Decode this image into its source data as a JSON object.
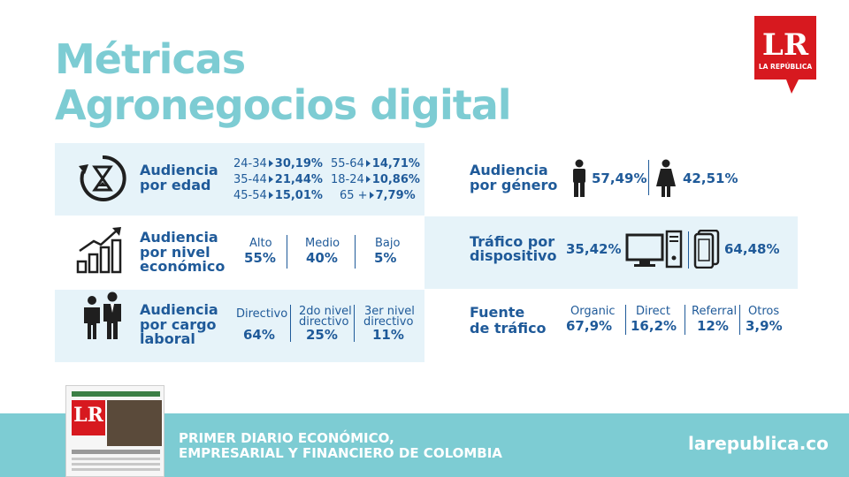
{
  "title": {
    "line1": "Métricas",
    "line2": "Agronegocios digital"
  },
  "logo": {
    "letters": "LR",
    "tagline": "LA REPÚBLICA"
  },
  "colors": {
    "teal": "#7dccd3",
    "navy": "#1f5a99",
    "band": "#e6f3f9",
    "logo_red": "#d7191f"
  },
  "age": {
    "label1": "Audiencia",
    "label2": "por edad",
    "rows": [
      {
        "a_range": "24-34",
        "a_val": "30,19%",
        "b_range": "55-64",
        "b_val": "14,71%"
      },
      {
        "a_range": "35-44",
        "a_val": "21,44%",
        "b_range": "18-24",
        "b_val": "10,86%"
      },
      {
        "a_range": "45-54",
        "a_val": "15,01%",
        "b_range": "65 +",
        "b_val": "7,79%"
      }
    ]
  },
  "economic": {
    "label1": "Audiencia",
    "label2": "por nivel",
    "label3": "económico",
    "items": [
      {
        "name": "Alto",
        "value": "55%"
      },
      {
        "name": "Medio",
        "value": "40%"
      },
      {
        "name": "Bajo",
        "value": "5%"
      }
    ]
  },
  "job": {
    "label1": "Audiencia",
    "label2": "por cargo",
    "label3": "laboral",
    "items": [
      {
        "name1": "Directivo",
        "name2": "",
        "value": "64%"
      },
      {
        "name1": "2do nivel",
        "name2": "directivo",
        "value": "25%"
      },
      {
        "name1": "3er nivel",
        "name2": "directivo",
        "value": "11%"
      }
    ]
  },
  "gender": {
    "label1": "Audiencia",
    "label2": "por género",
    "male": "57,49%",
    "female": "42,51%"
  },
  "device": {
    "label1": "Tráfico por",
    "label2": "dispositivo",
    "desktop": "35,42%",
    "mobile": "64,48%"
  },
  "traffic": {
    "label1": "Fuente",
    "label2": "de tráfico",
    "items": [
      {
        "name": "Organic",
        "value": "67,9%"
      },
      {
        "name": "Direct",
        "value": "16,2%"
      },
      {
        "name": "Referral",
        "value": "12%"
      },
      {
        "name": "Otros",
        "value": "3,9%"
      }
    ]
  },
  "footer": {
    "line1": "PRIMER DIARIO ECONÓMICO,",
    "line2": "EMPRESARIAL Y FINANCIERO DE COLOMBIA",
    "url": "larepublica.co"
  },
  "newspaper": {
    "letters": "LR"
  },
  "icons": [
    "clock-hourglass-icon",
    "growth-chart-icon",
    "business-people-icon",
    "male-icon",
    "female-icon",
    "desktop-computer-icon",
    "mobile-devices-icon"
  ]
}
